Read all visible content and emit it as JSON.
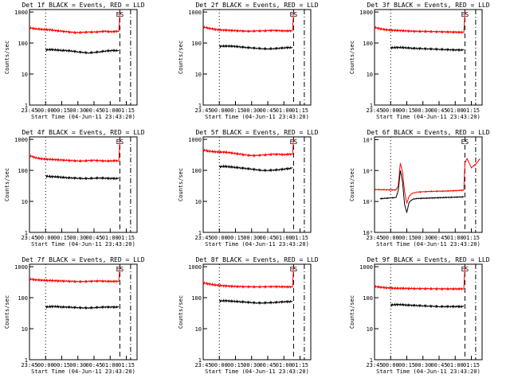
{
  "chart_data": [
    {
      "type": "line",
      "title": "Det 1f BLACK = Events, RED = LLD",
      "ylabel": "Counts/sec",
      "xlabel": "Start Time (04-Jun-11 23:43:20)",
      "x_ticks": [
        "23:45",
        "00:00",
        "00:15",
        "00:30",
        "00:45",
        "01:00",
        "01:15"
      ],
      "y_ticks": [
        "1",
        "10",
        "100",
        "1000"
      ],
      "log_y": true,
      "ylim": [
        1,
        1200
      ],
      "marker": "ES",
      "series": [
        {
          "name": "LLD",
          "color": "#ff0000",
          "x": [
            0,
            5,
            10,
            15,
            20,
            25,
            30,
            35,
            40,
            45,
            50,
            55,
            60,
            65,
            70,
            75,
            80,
            83,
            84
          ],
          "y": [
            310,
            290,
            280,
            270,
            265,
            250,
            240,
            230,
            220,
            215,
            220,
            225,
            225,
            230,
            240,
            230,
            235,
            240,
            1000
          ]
        },
        {
          "name": "Events",
          "color": "#000000",
          "x": [
            15,
            20,
            25,
            30,
            35,
            40,
            45,
            50,
            55,
            60,
            65,
            70,
            75,
            80,
            83
          ],
          "y": [
            60,
            62,
            60,
            58,
            57,
            55,
            52,
            50,
            48,
            50,
            52,
            55,
            57,
            58,
            56
          ]
        }
      ]
    },
    {
      "type": "line",
      "title": "Det 2f BLACK = Events, RED = LLD",
      "ylabel": "Counts/sec",
      "xlabel": "Start Time (04-Jun-11 23:43:20)",
      "x_ticks": [
        "23:45",
        "00:00",
        "00:15",
        "00:30",
        "00:45",
        "01:00",
        "01:15"
      ],
      "y_ticks": [
        "1",
        "10",
        "100",
        "1000"
      ],
      "log_y": true,
      "ylim": [
        1,
        1200
      ],
      "marker": "ES",
      "series": [
        {
          "name": "LLD",
          "color": "#ff0000",
          "x": [
            0,
            5,
            10,
            15,
            20,
            25,
            30,
            35,
            40,
            45,
            50,
            55,
            60,
            65,
            70,
            75,
            80,
            83,
            84
          ],
          "y": [
            330,
            300,
            280,
            265,
            260,
            255,
            250,
            245,
            240,
            240,
            245,
            245,
            250,
            255,
            250,
            245,
            245,
            250,
            1000
          ]
        },
        {
          "name": "Events",
          "color": "#000000",
          "x": [
            15,
            20,
            25,
            30,
            35,
            40,
            45,
            50,
            55,
            60,
            65,
            70,
            75,
            80,
            83
          ],
          "y": [
            78,
            80,
            80,
            78,
            75,
            72,
            70,
            68,
            66,
            65,
            66,
            68,
            70,
            72,
            70
          ]
        }
      ]
    },
    {
      "type": "line",
      "title": "Det 3f BLACK = Events, RED = LLD",
      "ylabel": "Counts/sec",
      "xlabel": "Start Time (04-Jun-11 23:43:20)",
      "x_ticks": [
        "23:45",
        "00:00",
        "00:15",
        "00:30",
        "00:45",
        "01:00",
        "01:15"
      ],
      "y_ticks": [
        "1",
        "10",
        "100",
        "1000"
      ],
      "log_y": true,
      "ylim": [
        1,
        1200
      ],
      "marker": "ES",
      "series": [
        {
          "name": "LLD",
          "color": "#ff0000",
          "x": [
            0,
            5,
            10,
            15,
            20,
            25,
            30,
            35,
            40,
            45,
            50,
            55,
            60,
            65,
            70,
            75,
            80,
            83,
            84
          ],
          "y": [
            320,
            290,
            270,
            260,
            255,
            250,
            245,
            240,
            238,
            236,
            234,
            232,
            230,
            228,
            226,
            224,
            222,
            220,
            1000
          ]
        },
        {
          "name": "Events",
          "color": "#000000",
          "x": [
            15,
            20,
            25,
            30,
            35,
            40,
            45,
            50,
            55,
            60,
            65,
            70,
            75,
            80,
            83
          ],
          "y": [
            70,
            72,
            72,
            70,
            68,
            67,
            66,
            65,
            64,
            63,
            62,
            61,
            60,
            60,
            60
          ]
        }
      ]
    },
    {
      "type": "line",
      "title": "Det 4f BLACK = Events, RED = LLD",
      "ylabel": "Counts/sec",
      "xlabel": "Start Time (04-Jun-11 23:43:20)",
      "x_ticks": [
        "23:45",
        "00:00",
        "00:15",
        "00:30",
        "00:45",
        "01:00",
        "01:15"
      ],
      "y_ticks": [
        "1",
        "10",
        "100",
        "1000"
      ],
      "log_y": true,
      "ylim": [
        1,
        1200
      ],
      "marker": "ES",
      "series": [
        {
          "name": "LLD",
          "color": "#ff0000",
          "x": [
            0,
            5,
            10,
            15,
            20,
            25,
            30,
            35,
            40,
            45,
            50,
            55,
            60,
            65,
            70,
            75,
            80,
            83,
            84
          ],
          "y": [
            300,
            260,
            240,
            230,
            225,
            220,
            215,
            210,
            205,
            200,
            200,
            205,
            210,
            205,
            200,
            200,
            205,
            200,
            1000
          ]
        },
        {
          "name": "Events",
          "color": "#000000",
          "x": [
            15,
            20,
            25,
            30,
            35,
            40,
            45,
            50,
            55,
            60,
            65,
            70,
            75,
            80,
            83
          ],
          "y": [
            65,
            63,
            62,
            60,
            58,
            57,
            56,
            55,
            55,
            56,
            57,
            56,
            55,
            55,
            55
          ]
        }
      ]
    },
    {
      "type": "line",
      "title": "Det 5f BLACK = Events, RED = LLD",
      "ylabel": "Counts/sec",
      "xlabel": "Start Time (04-Jun-11 23:43:20)",
      "x_ticks": [
        "23:45",
        "00:00",
        "00:15",
        "00:30",
        "00:45",
        "01:00",
        "01:15"
      ],
      "y_ticks": [
        "1",
        "10",
        "100",
        "1000"
      ],
      "log_y": true,
      "ylim": [
        1,
        1200
      ],
      "marker": "ES",
      "series": [
        {
          "name": "LLD",
          "color": "#ff0000",
          "x": [
            0,
            5,
            10,
            15,
            20,
            25,
            30,
            35,
            40,
            45,
            50,
            55,
            60,
            65,
            70,
            75,
            80,
            83,
            84
          ],
          "y": [
            450,
            420,
            400,
            390,
            385,
            370,
            350,
            330,
            310,
            300,
            300,
            310,
            320,
            330,
            330,
            320,
            330,
            330,
            1000
          ]
        },
        {
          "name": "Events",
          "color": "#000000",
          "x": [
            15,
            20,
            25,
            30,
            35,
            40,
            45,
            50,
            55,
            60,
            65,
            70,
            75,
            80,
            83
          ],
          "y": [
            130,
            135,
            130,
            125,
            120,
            115,
            110,
            105,
            100,
            100,
            102,
            105,
            110,
            115,
            120
          ]
        }
      ]
    },
    {
      "type": "line",
      "title": "Det 6f BLACK = Events, RED = LLD",
      "ylabel": "Counts/sec",
      "xlabel": "Start Time (04-Jun-11 23:43:20)",
      "x_ticks": [
        "23:45",
        "00:00",
        "00:15",
        "00:30",
        "00:45",
        "01:00",
        "01:15"
      ],
      "y_ticks": [
        "10⁰",
        "10²",
        "10⁴",
        "10⁶"
      ],
      "log_y": true,
      "ylim": [
        1,
        1500000
      ],
      "marker": "ES",
      "series": [
        {
          "name": "LLD",
          "color": "#ff0000",
          "x": [
            0,
            5,
            10,
            15,
            20,
            22,
            24,
            26,
            28,
            30,
            32,
            34,
            36,
            38,
            40,
            45,
            50,
            55,
            60,
            65,
            70,
            75,
            80,
            83,
            84,
            86,
            90,
            95,
            98
          ],
          "y": [
            600,
            580,
            570,
            560,
            560,
            1000,
            30000,
            8000,
            400,
            80,
            200,
            300,
            350,
            380,
            400,
            420,
            440,
            450,
            460,
            470,
            480,
            500,
            520,
            540,
            30000,
            60000,
            15000,
            30000,
            60000
          ]
        },
        {
          "name": "Events",
          "color": "#000000",
          "x": [
            5,
            10,
            15,
            20,
            22,
            24,
            26,
            28,
            30,
            32,
            34,
            36,
            38,
            40,
            45,
            50,
            55,
            60,
            65,
            70,
            75,
            80,
            83
          ],
          "y": [
            150,
            160,
            170,
            180,
            500,
            10000,
            2000,
            60,
            20,
            80,
            120,
            140,
            150,
            155,
            160,
            165,
            170,
            175,
            180,
            185,
            190,
            195,
            200
          ]
        }
      ]
    },
    {
      "type": "line",
      "title": "Det 7f BLACK = Events, RED = LLD",
      "ylabel": "Counts/sec",
      "xlabel": "Start Time (04-Jun-11 23:43:20)",
      "x_ticks": [
        "23:45",
        "00:00",
        "00:15",
        "00:30",
        "00:45",
        "01:00",
        "01:15"
      ],
      "y_ticks": [
        "1",
        "10",
        "100",
        "1000"
      ],
      "log_y": true,
      "ylim": [
        1,
        1200
      ],
      "marker": "ES",
      "series": [
        {
          "name": "LLD",
          "color": "#ff0000",
          "x": [
            0,
            5,
            10,
            15,
            20,
            25,
            30,
            35,
            40,
            45,
            50,
            55,
            60,
            65,
            70,
            75,
            80,
            83,
            84
          ],
          "y": [
            400,
            380,
            370,
            360,
            355,
            350,
            345,
            340,
            335,
            330,
            330,
            335,
            340,
            345,
            340,
            335,
            335,
            340,
            1000
          ]
        },
        {
          "name": "Events",
          "color": "#000000",
          "x": [
            15,
            20,
            25,
            30,
            35,
            40,
            45,
            50,
            55,
            60,
            65,
            70,
            75,
            80,
            83
          ],
          "y": [
            50,
            52,
            52,
            50,
            50,
            49,
            48,
            47,
            47,
            48,
            49,
            50,
            50,
            50,
            50
          ]
        }
      ]
    },
    {
      "type": "line",
      "title": "Det 8f BLACK = Events, RED = LLD",
      "ylabel": "Counts/sec",
      "xlabel": "Start Time (04-Jun-11 23:43:20)",
      "x_ticks": [
        "23:45",
        "00:00",
        "00:15",
        "00:30",
        "00:45",
        "01:00",
        "01:15"
      ],
      "y_ticks": [
        "1",
        "10",
        "100",
        "1000"
      ],
      "log_y": true,
      "ylim": [
        1,
        1200
      ],
      "marker": "ES",
      "series": [
        {
          "name": "LLD",
          "color": "#ff0000",
          "x": [
            0,
            5,
            10,
            15,
            20,
            25,
            30,
            35,
            40,
            45,
            50,
            55,
            60,
            65,
            70,
            75,
            80,
            83,
            84
          ],
          "y": [
            300,
            280,
            260,
            250,
            240,
            235,
            230,
            228,
            226,
            224,
            222,
            224,
            226,
            228,
            226,
            224,
            222,
            222,
            1000
          ]
        },
        {
          "name": "Events",
          "color": "#000000",
          "x": [
            15,
            20,
            25,
            30,
            35,
            40,
            45,
            50,
            55,
            60,
            65,
            70,
            75,
            80,
            83
          ],
          "y": [
            78,
            80,
            78,
            76,
            74,
            72,
            70,
            68,
            68,
            69,
            70,
            72,
            74,
            75,
            75
          ]
        }
      ]
    },
    {
      "type": "line",
      "title": "Det 9f BLACK = Events, RED = LLD",
      "ylabel": "Counts/sec",
      "xlabel": "Start Time (04-Jun-11 23:43:20)",
      "x_ticks": [
        "23:45",
        "00:00",
        "00:15",
        "00:30",
        "00:45",
        "01:00",
        "01:15"
      ],
      "y_ticks": [
        "1",
        "10",
        "100",
        "1000"
      ],
      "log_y": true,
      "ylim": [
        1,
        1200
      ],
      "marker": "ES",
      "series": [
        {
          "name": "LLD",
          "color": "#ff0000",
          "x": [
            0,
            5,
            10,
            15,
            20,
            25,
            30,
            35,
            40,
            45,
            50,
            55,
            60,
            65,
            70,
            75,
            80,
            83,
            84
          ],
          "y": [
            230,
            220,
            210,
            205,
            200,
            200,
            198,
            196,
            195,
            195,
            194,
            193,
            192,
            192,
            192,
            192,
            192,
            192,
            1000
          ]
        },
        {
          "name": "Events",
          "color": "#000000",
          "x": [
            15,
            20,
            25,
            30,
            35,
            40,
            45,
            50,
            55,
            60,
            65,
            70,
            75,
            80,
            83
          ],
          "y": [
            58,
            60,
            60,
            58,
            57,
            56,
            55,
            54,
            53,
            52,
            52,
            52,
            52,
            52,
            52
          ]
        }
      ]
    }
  ]
}
